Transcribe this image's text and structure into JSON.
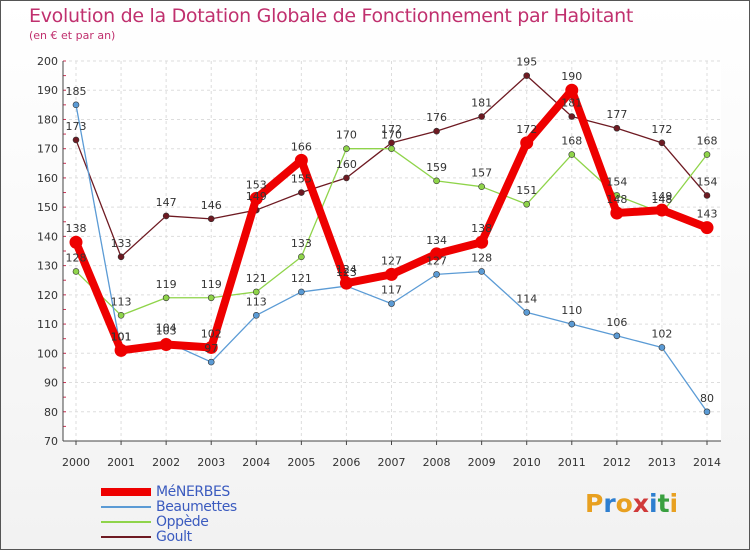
{
  "title": "Evolution de la Dotation Globale de Fonctionnement par Habitant",
  "subtitle": "(en € et par an)",
  "logo": {
    "letters": [
      "P",
      "r",
      "o",
      "x",
      "i",
      "t",
      "i"
    ],
    "colors": [
      "#e8a020",
      "#2e7fd0",
      "#e8a020",
      "#d03a3a",
      "#2e7fd0",
      "#3aa040",
      "#e8a020"
    ]
  },
  "chart_data": {
    "type": "line",
    "x": [
      "2000",
      "2001",
      "2002",
      "2003",
      "2004",
      "2005",
      "2006",
      "2007",
      "2008",
      "2009",
      "2010",
      "2011",
      "2012",
      "2013",
      "2014"
    ],
    "ylim": [
      70,
      200
    ],
    "yticks": [
      70,
      80,
      90,
      100,
      110,
      120,
      130,
      140,
      150,
      160,
      170,
      180,
      190,
      200
    ],
    "grid": true,
    "legend_position": "bottom-left",
    "series": [
      {
        "name": "Goult",
        "color": "#6e1a22",
        "values": [
          173,
          133,
          147,
          146,
          149,
          155,
          160,
          172,
          176,
          181,
          195,
          181,
          177,
          172,
          154
        ]
      },
      {
        "name": "Oppède",
        "color": "#8fd44a",
        "values": [
          128,
          113,
          119,
          119,
          121,
          133,
          170,
          170,
          159,
          157,
          151,
          168,
          154,
          148,
          168
        ]
      },
      {
        "name": "Beaumettes",
        "color": "#5b9bd5",
        "values": [
          185,
          101,
          104,
          97,
          113,
          121,
          123,
          117,
          127,
          128,
          114,
          110,
          106,
          102,
          80
        ]
      },
      {
        "name": "MéNERBES",
        "color": "#ee0000",
        "values": [
          138,
          101,
          103,
          102,
          153,
          166,
          124,
          127,
          134,
          138,
          172,
          190,
          148,
          149,
          143
        ]
      }
    ]
  }
}
